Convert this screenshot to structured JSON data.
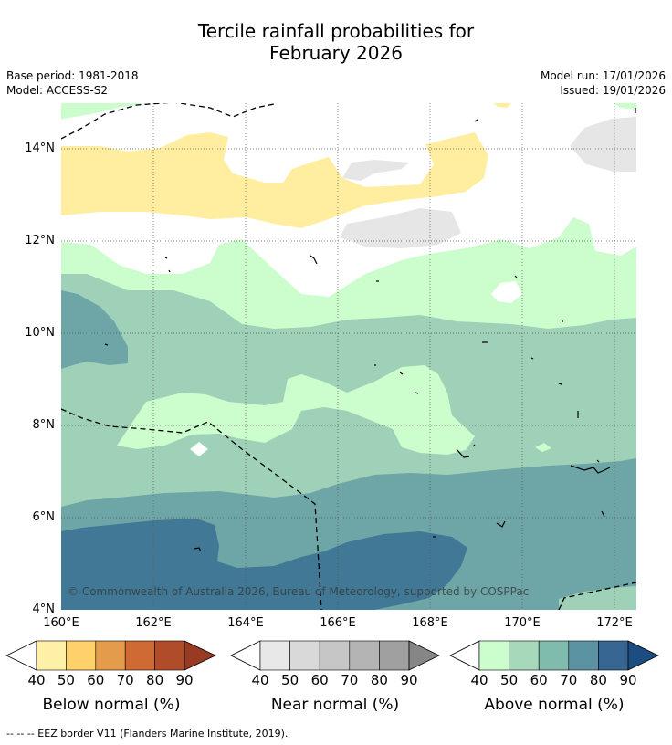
{
  "title": {
    "line1": "Tercile rainfall probabilities for",
    "line2": "February 2026"
  },
  "meta": {
    "base_period": "Base period: 1981-2018",
    "model": "Model: ACCESS-S2",
    "model_run": "Model run: 17/01/2026",
    "issued": "Issued: 19/01/2026"
  },
  "axes": {
    "latitude_labels": [
      "14°N",
      "12°N",
      "10°N",
      "8°N",
      "6°N",
      "4°N"
    ],
    "longitude_labels": [
      "160°E",
      "162°E",
      "164°E",
      "166°E",
      "168°E",
      "170°E",
      "172°E"
    ]
  },
  "credit": "© Commonwealth of Australia 2026, Bureau of Meteorology, supported by COSPPac",
  "colorbars": [
    {
      "label": "Below normal (%)",
      "ticks": [
        "40",
        "50",
        "60",
        "70",
        "80",
        "90"
      ],
      "colors": [
        "#fff0a8",
        "#fed16b",
        "#e49b4c",
        "#d06a35",
        "#b04c2a",
        "#993a22"
      ]
    },
    {
      "label": "Near normal (%)",
      "ticks": [
        "40",
        "50",
        "60",
        "70",
        "80",
        "90"
      ],
      "colors": [
        "#e8e8e8",
        "#d9d9d9",
        "#c6c6c6",
        "#b4b4b4",
        "#a0a0a0",
        "#868686"
      ]
    },
    {
      "label": "Above normal (%)",
      "ticks": [
        "40",
        "50",
        "60",
        "70",
        "80",
        "90"
      ],
      "colors": [
        "#ccfdcc",
        "#a5d9b9",
        "#80bcad",
        "#5b93a3",
        "#376692",
        "#1b4d80"
      ]
    }
  ],
  "map_colors": {
    "below_40": "#ffeea0",
    "near_40": "#e6e6e6",
    "above_40": "#ccfdcc",
    "above_50": "#9ed1b8",
    "above_60": "#6ea6a8",
    "above_70": "#417895"
  },
  "footnote": "--  --  -- EEZ border V11 (Flanders Marine Institute, 2019)."
}
